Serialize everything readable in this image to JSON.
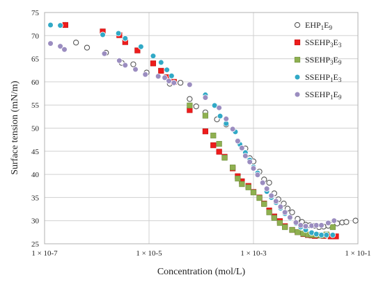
{
  "chart_data": {
    "type": "scatter",
    "xlabel": "Concentration (mol/L)",
    "ylabel": "Surface tension (mN/m)",
    "x_scale": "log",
    "xlim": [
      1e-07,
      0.1
    ],
    "ylim": [
      25,
      75
    ],
    "grid": true,
    "legend_position": "top-right",
    "x_tick_labels": [
      "1 × 10-7",
      "1 × 10-5",
      "1 × 10-3",
      "1 × 10-1"
    ],
    "y_ticks": [
      25,
      30,
      35,
      40,
      45,
      50,
      55,
      60,
      65,
      70,
      75
    ],
    "series": [
      {
        "name": "EHP1E9",
        "marker": "open-circle",
        "color": "#555555",
        "points": [
          [
            2.5e-07,
            72.3
          ],
          [
            4e-07,
            68.5
          ],
          [
            6.5e-07,
            67.4
          ],
          [
            1.5e-06,
            66.3
          ],
          [
            3e-06,
            64.1
          ],
          [
            5e-06,
            63.8
          ],
          [
            9e-06,
            62.0
          ],
          [
            1.5e-05,
            61.2
          ],
          [
            2.5e-05,
            59.6
          ],
          [
            4e-05,
            59.8
          ],
          [
            6e-05,
            56.3
          ],
          [
            8e-05,
            54.7
          ],
          [
            0.00012,
            53.4
          ],
          [
            0.0002,
            51.9
          ],
          [
            0.0003,
            50.8
          ],
          [
            0.0005,
            47.2
          ],
          [
            0.0007,
            45.6
          ],
          [
            0.00085,
            43.5
          ],
          [
            0.001,
            42.8
          ],
          [
            0.0013,
            40.6
          ],
          [
            0.0016,
            38.9
          ],
          [
            0.002,
            38.2
          ],
          [
            0.0025,
            35.9
          ],
          [
            0.003,
            34.6
          ],
          [
            0.0038,
            33.7
          ],
          [
            0.0045,
            32.6
          ],
          [
            0.0055,
            31.8
          ],
          [
            0.007,
            30.4
          ],
          [
            0.0085,
            29.7
          ],
          [
            0.01,
            29.1
          ],
          [
            0.012,
            29.0
          ],
          [
            0.015,
            28.9
          ],
          [
            0.018,
            28.6
          ],
          [
            0.022,
            28.7
          ],
          [
            0.027,
            28.9
          ],
          [
            0.033,
            29.2
          ],
          [
            0.04,
            29.4
          ],
          [
            0.05,
            29.6
          ],
          [
            0.06,
            29.7
          ],
          [
            0.09,
            30.0
          ]
        ]
      },
      {
        "name": "SSEHP3E3",
        "marker": "filled-square",
        "color": "#ee1c1c",
        "points": [
          [
            2.5e-07,
            72.3
          ],
          [
            1.3e-06,
            70.9
          ],
          [
            2.7e-06,
            70.1
          ],
          [
            3.5e-06,
            68.6
          ],
          [
            6e-06,
            66.8
          ],
          [
            1.2e-05,
            64.0
          ],
          [
            1.7e-05,
            62.4
          ],
          [
            2.2e-05,
            61.0
          ],
          [
            3e-05,
            60.0
          ],
          [
            6e-05,
            53.9
          ],
          [
            0.00012,
            49.3
          ],
          [
            0.00017,
            46.3
          ],
          [
            0.00022,
            44.9
          ],
          [
            0.00028,
            43.8
          ],
          [
            0.0004,
            41.3
          ],
          [
            0.0005,
            39.6
          ],
          [
            0.0006,
            38.5
          ],
          [
            0.0008,
            37.5
          ],
          [
            0.001,
            36.2
          ],
          [
            0.0013,
            35.0
          ],
          [
            0.0016,
            33.7
          ],
          [
            0.002,
            32.2
          ],
          [
            0.0025,
            30.9
          ],
          [
            0.0032,
            29.9
          ],
          [
            0.004,
            28.8
          ],
          [
            0.0055,
            28.0
          ],
          [
            0.007,
            27.5
          ],
          [
            0.009,
            27.1
          ],
          [
            0.011,
            26.9
          ],
          [
            0.013,
            26.8
          ],
          [
            0.015,
            26.7
          ],
          [
            0.018,
            26.8
          ],
          [
            0.022,
            26.7
          ],
          [
            0.03,
            26.6
          ],
          [
            0.038,
            26.6
          ]
        ]
      },
      {
        "name": "SSEHP3E9",
        "marker": "filled-square",
        "color": "#8fb050",
        "points": [
          [
            6e-05,
            54.9
          ],
          [
            0.00012,
            52.7
          ],
          [
            0.00017,
            48.4
          ],
          [
            0.00022,
            46.6
          ],
          [
            0.00028,
            43.6
          ],
          [
            0.0004,
            41.5
          ],
          [
            0.0005,
            39.1
          ],
          [
            0.0006,
            37.9
          ],
          [
            0.0008,
            37.2
          ],
          [
            0.001,
            36.1
          ],
          [
            0.0013,
            34.9
          ],
          [
            0.0016,
            33.6
          ],
          [
            0.002,
            31.8
          ],
          [
            0.0025,
            30.6
          ],
          [
            0.0032,
            29.5
          ],
          [
            0.004,
            28.6
          ],
          [
            0.0055,
            28.0
          ],
          [
            0.007,
            27.5
          ],
          [
            0.009,
            27.2
          ],
          [
            0.011,
            27.0
          ],
          [
            0.013,
            26.9
          ],
          [
            0.016,
            26.9
          ],
          [
            0.02,
            26.8
          ],
          [
            0.025,
            27.0
          ],
          [
            0.033,
            28.6
          ]
        ]
      },
      {
        "name": "SSEHP1E3",
        "marker": "filled-circle",
        "color": "#31a9c6",
        "points": [
          [
            1.3e-07,
            72.3
          ],
          [
            2e-07,
            72.2
          ],
          [
            1.3e-06,
            70.2
          ],
          [
            2.6e-06,
            70.5
          ],
          [
            3.5e-06,
            69.4
          ],
          [
            7e-06,
            67.6
          ],
          [
            1.2e-05,
            65.6
          ],
          [
            1.7e-05,
            64.2
          ],
          [
            2.2e-05,
            62.6
          ],
          [
            2.7e-05,
            61.3
          ],
          [
            0.00012,
            57.2
          ],
          [
            0.00018,
            54.9
          ],
          [
            0.00023,
            52.6
          ],
          [
            0.0003,
            51.0
          ],
          [
            0.00045,
            49.2
          ],
          [
            0.00055,
            46.5
          ],
          [
            0.0007,
            44.7
          ],
          [
            0.00085,
            43.1
          ],
          [
            0.001,
            41.6
          ],
          [
            0.0012,
            40.3
          ],
          [
            0.0015,
            38.2
          ],
          [
            0.0018,
            36.3
          ],
          [
            0.0022,
            35.0
          ],
          [
            0.0027,
            33.9
          ],
          [
            0.0033,
            32.7
          ],
          [
            0.004,
            31.5
          ],
          [
            0.005,
            30.5
          ],
          [
            0.0065,
            29.4
          ],
          [
            0.008,
            28.6
          ],
          [
            0.01,
            28.0
          ],
          [
            0.013,
            27.4
          ],
          [
            0.016,
            27.1
          ],
          [
            0.02,
            26.9
          ],
          [
            0.025,
            26.9
          ],
          [
            0.033,
            26.9
          ]
        ]
      },
      {
        "name": "SSEHP1E9",
        "marker": "filled-circle",
        "color": "#9b8dc0",
        "points": [
          [
            1.3e-07,
            68.3
          ],
          [
            2e-07,
            67.7
          ],
          [
            2.4e-07,
            67.0
          ],
          [
            1.4e-06,
            66.1
          ],
          [
            2.7e-06,
            64.6
          ],
          [
            3.5e-06,
            63.6
          ],
          [
            5.5e-06,
            62.7
          ],
          [
            8.5e-06,
            61.6
          ],
          [
            1.5e-05,
            61.2
          ],
          [
            2e-05,
            60.9
          ],
          [
            2.4e-05,
            60.2
          ],
          [
            3e-05,
            59.8
          ],
          [
            6e-05,
            59.4
          ],
          [
            0.00012,
            56.6
          ],
          [
            0.00022,
            54.4
          ],
          [
            0.0003,
            52.0
          ],
          [
            0.0004,
            49.8
          ],
          [
            0.0005,
            47.2
          ],
          [
            0.0006,
            45.7
          ],
          [
            0.0007,
            44.0
          ],
          [
            0.00085,
            42.7
          ],
          [
            0.001,
            41.3
          ],
          [
            0.0012,
            39.9
          ],
          [
            0.0015,
            38.2
          ],
          [
            0.0018,
            36.9
          ],
          [
            0.0022,
            35.4
          ],
          [
            0.0027,
            34.2
          ],
          [
            0.0033,
            33.0
          ],
          [
            0.004,
            31.8
          ],
          [
            0.005,
            30.7
          ],
          [
            0.0065,
            29.6
          ],
          [
            0.008,
            29.0
          ],
          [
            0.01,
            28.8
          ],
          [
            0.013,
            28.9
          ],
          [
            0.016,
            29.0
          ],
          [
            0.02,
            29.0
          ],
          [
            0.027,
            29.5
          ],
          [
            0.035,
            30.0
          ]
        ]
      }
    ],
    "legend": [
      {
        "series": 0,
        "prefix": "EHP",
        "sub1": "1",
        "mid": "E",
        "sub2": "9"
      },
      {
        "series": 1,
        "prefix": "SSEHP",
        "sub1": "3",
        "mid": "E",
        "sub2": "3"
      },
      {
        "series": 2,
        "prefix": "SSEHP",
        "sub1": "3",
        "mid": "E",
        "sub2": "9"
      },
      {
        "series": 3,
        "prefix": "SSEHP",
        "sub1": "1",
        "mid": "E",
        "sub2": "3"
      },
      {
        "series": 4,
        "prefix": "SSEHP",
        "sub1": "1",
        "mid": "E",
        "sub2": "9"
      }
    ]
  }
}
